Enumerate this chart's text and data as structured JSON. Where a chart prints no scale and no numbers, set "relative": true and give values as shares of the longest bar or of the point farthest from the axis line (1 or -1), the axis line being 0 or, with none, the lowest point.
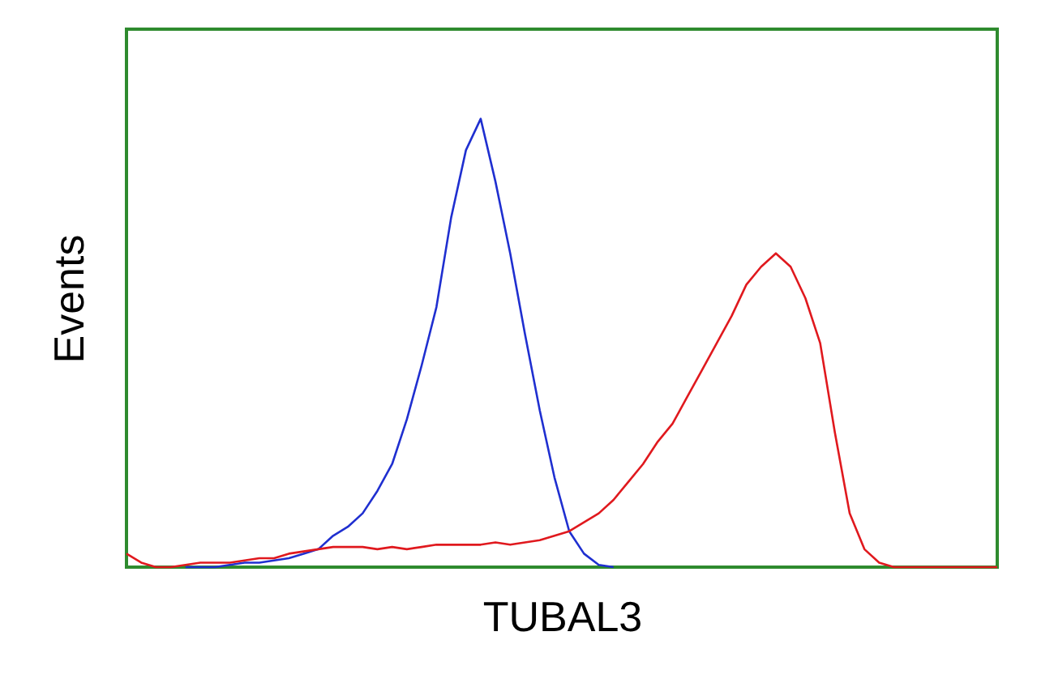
{
  "chart_data": {
    "type": "line",
    "relative": true,
    "xlabel": "TUBAL3",
    "ylabel": "Events",
    "grid": false,
    "marker": "none",
    "line_style": "solid",
    "categories": [
      null,
      null,
      null,
      null,
      null,
      null,
      null,
      null,
      null,
      null,
      null,
      null,
      null,
      null,
      null,
      null,
      null,
      null,
      null,
      null,
      null,
      null,
      null,
      null,
      null,
      null,
      null,
      null,
      null,
      null,
      null,
      null,
      null,
      null,
      null,
      null,
      null,
      null,
      null,
      null,
      null,
      null,
      null,
      null,
      null,
      null,
      null,
      null,
      null,
      null,
      null,
      null,
      null,
      null,
      null,
      null,
      null,
      null,
      null,
      null
    ],
    "series": [
      {
        "color": "#1f2fd0",
        "values": [
          null,
          null,
          null,
          null,
          0,
          0,
          0,
          0.005,
          0.01,
          0.01,
          0.015,
          0.02,
          0.03,
          0.04,
          0.07,
          0.09,
          0.12,
          0.17,
          0.23,
          0.33,
          0.45,
          0.58,
          0.78,
          0.93,
          1.0,
          0.86,
          0.7,
          0.52,
          0.35,
          0.2,
          0.08,
          0.03,
          0.005,
          0,
          null,
          null,
          null,
          null,
          null,
          null,
          null,
          null,
          null,
          null,
          null,
          null,
          null,
          null,
          null,
          null,
          null,
          null,
          null,
          null,
          null,
          null,
          null,
          null,
          null,
          null
        ]
      },
      {
        "color": "#e0191e",
        "values": [
          0.03,
          0.01,
          0,
          0,
          0.005,
          0.01,
          0.01,
          0.01,
          0.015,
          0.02,
          0.02,
          0.03,
          0.035,
          0.04,
          0.045,
          0.045,
          0.045,
          0.04,
          0.045,
          0.04,
          0.045,
          0.05,
          0.05,
          0.05,
          0.05,
          0.055,
          0.05,
          0.055,
          0.06,
          0.07,
          0.08,
          0.1,
          0.12,
          0.15,
          0.19,
          0.23,
          0.28,
          0.32,
          0.38,
          0.44,
          0.5,
          0.56,
          0.63,
          0.67,
          0.7,
          0.67,
          0.6,
          0.5,
          0.3,
          0.12,
          0.04,
          0.01,
          0,
          0,
          0,
          0,
          0,
          0,
          0,
          0
        ]
      }
    ]
  }
}
